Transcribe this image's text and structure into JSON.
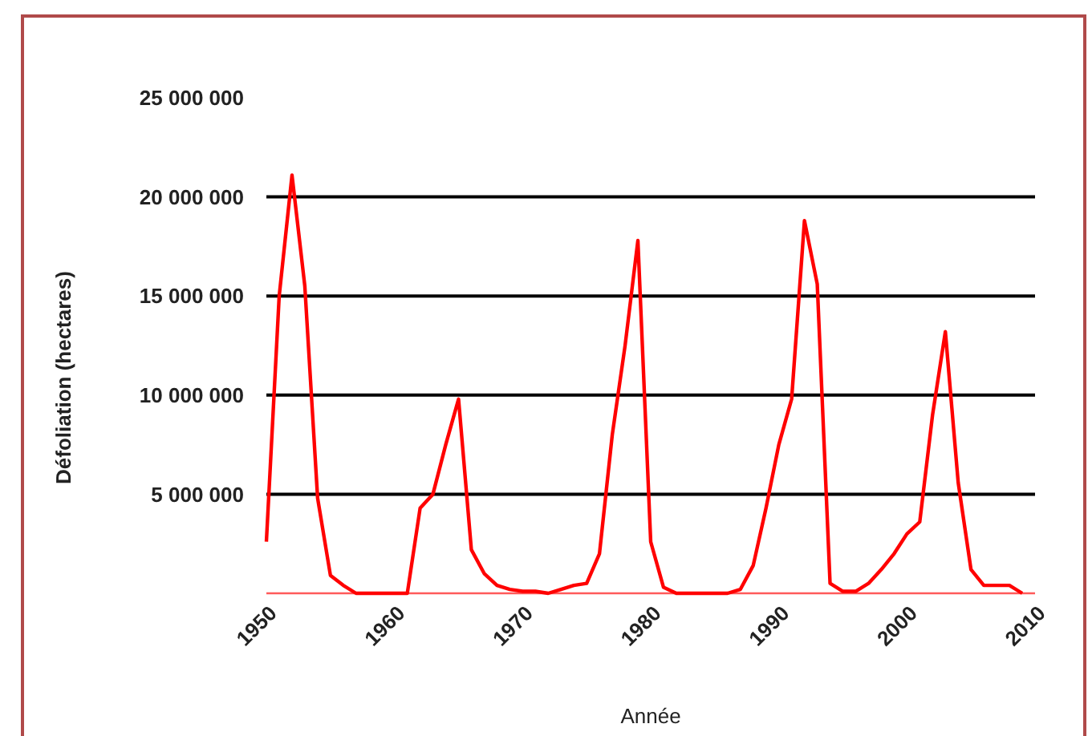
{
  "chart_data": {
    "type": "line",
    "xlabel": "Année",
    "ylabel": "Défoliation (hectares)",
    "x": [
      1950,
      1951,
      1952,
      1953,
      1954,
      1955,
      1956,
      1957,
      1958,
      1959,
      1960,
      1961,
      1962,
      1963,
      1964,
      1965,
      1966,
      1967,
      1968,
      1969,
      1970,
      1971,
      1972,
      1973,
      1974,
      1975,
      1976,
      1977,
      1978,
      1979,
      1980,
      1981,
      1982,
      1983,
      1984,
      1985,
      1986,
      1987,
      1988,
      1989,
      1990,
      1991,
      1992,
      1993,
      1994,
      1995,
      1996,
      1997,
      1998,
      1999,
      2000,
      2001,
      2002,
      2003,
      2004,
      2005,
      2006,
      2007,
      2008,
      2009
    ],
    "series": [
      {
        "color": "#ff0000",
        "values": [
          2600000,
          15000000,
          21100000,
          15500000,
          4800000,
          900000,
          400000,
          0,
          0,
          0,
          0,
          0,
          4300000,
          5000000,
          7500000,
          9800000,
          2200000,
          1000000,
          400000,
          200000,
          100000,
          100000,
          0,
          200000,
          400000,
          500000,
          2000000,
          8000000,
          12500000,
          17800000,
          2600000,
          300000,
          0,
          0,
          0,
          0,
          0,
          200000,
          1400000,
          4300000,
          7500000,
          9800000,
          18800000,
          15600000,
          500000,
          100000,
          100000,
          500000,
          1200000,
          2000000,
          3000000,
          3600000,
          9000000,
          13200000,
          5600000,
          1200000,
          400000,
          400000,
          400000,
          0
        ]
      }
    ],
    "xlim": [
      1950,
      2010
    ],
    "xticks": [
      1950,
      1960,
      1970,
      1980,
      1990,
      2000,
      2010
    ],
    "ylim": [
      0,
      25000000
    ],
    "yticks": [
      {
        "value": 5000000,
        "label": "5 000 000"
      },
      {
        "value": 10000000,
        "label": "10 000 000"
      },
      {
        "value": 15000000,
        "label": "15 000 000"
      },
      {
        "value": 20000000,
        "label": "20 000 000"
      },
      {
        "value": 25000000,
        "label": "25 000 000"
      }
    ],
    "grid": "y",
    "marker": "none",
    "line_style": "solid"
  }
}
